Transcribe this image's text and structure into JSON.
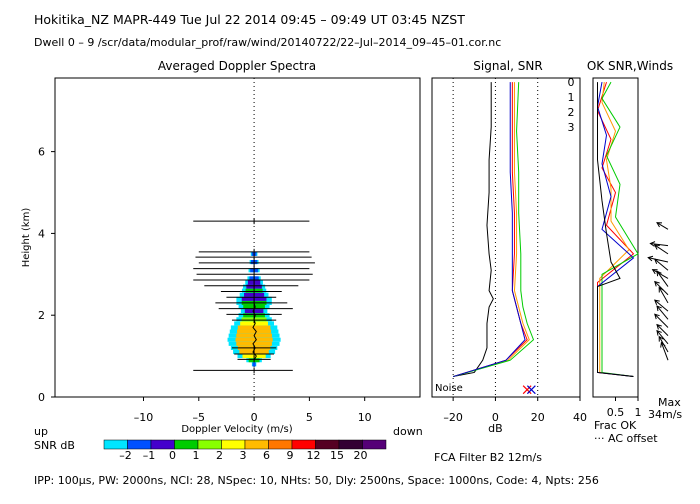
{
  "header": {
    "line1": "Hokitika_NZ  MAPR-449  Tue Jul 22 2014 09:45 – 09:49 UT 03:45 NZST",
    "line2": "Dwell  0 –  9   /scr/data/modular_prof/raw/wind/20140722/22–Jul–2014_09–45–01.cor.nc"
  },
  "footer": {
    "params": "IPP: 100µs,  PW: 2000ns,  NCI:  28,  NSpec: 10,  NHts: 50,  Dly: 2500ns,  Space: 1000ns,  Code: 4,  Npts: 256",
    "fca": "FCA Filter B2 12m/s",
    "frac_ok": "Frac OK",
    "ac_offset": "··· AC offset",
    "max_label": "Max",
    "max_value": "34m/s"
  },
  "colorbar": {
    "left_label": "up",
    "right_label": "down",
    "snr_label": "SNR dB",
    "levels": [
      "–2",
      "–1",
      "0",
      "1",
      "2",
      "3",
      "6",
      "9",
      "12",
      "15",
      "20"
    ],
    "colors": [
      "#00e5ff",
      "#0050ff",
      "#4400cc",
      "#00cc00",
      "#88ff00",
      "#ffff00",
      "#ffbb00",
      "#ff7700",
      "#ff0000",
      "#550022",
      "#330033",
      "#550077"
    ]
  },
  "legend": {
    "ok_title": "OK SNR,Winds",
    "entries": [
      {
        "label": "0",
        "color": "#ff0000"
      },
      {
        "label": "1",
        "color": "#ff9900"
      },
      {
        "label": "2",
        "color": "#00cc00"
      },
      {
        "label": "3",
        "color": "#0000cc"
      }
    ]
  },
  "chart_data": [
    {
      "type": "heatmap",
      "title": "Averaged Doppler Spectra",
      "xlabel": "Doppler Velocity (m/s)",
      "ylabel": "Height (km)",
      "xlim": [
        -18,
        15
      ],
      "ylim": [
        0,
        7.8
      ],
      "xticks": [
        "–10",
        "–5",
        "0",
        "5",
        "10"
      ],
      "xtick_values": [
        -10,
        -5,
        0,
        5,
        10
      ],
      "yticks": [
        "0",
        "2",
        "4",
        "6"
      ],
      "ytick_values": [
        0,
        2,
        4,
        6
      ],
      "spread_bars": [
        {
          "h": 4.3,
          "l": -5.5,
          "r": 5.0
        },
        {
          "h": 3.55,
          "l": -5.0,
          "r": 5.0
        },
        {
          "h": 3.42,
          "l": -5.3,
          "r": 5.2
        },
        {
          "h": 3.28,
          "l": -5.0,
          "r": 5.5
        },
        {
          "h": 3.14,
          "l": -5.5,
          "r": 5.0
        },
        {
          "h": 3.0,
          "l": -5.2,
          "r": 5.3
        },
        {
          "h": 2.86,
          "l": -5.5,
          "r": 5.0
        },
        {
          "h": 2.72,
          "l": -4.5,
          "r": 4.0
        },
        {
          "h": 2.58,
          "l": -3.0,
          "r": 2.5
        },
        {
          "h": 2.44,
          "l": -2.5,
          "r": 2.0
        },
        {
          "h": 2.3,
          "l": -3.5,
          "r": 3.0
        },
        {
          "h": 2.16,
          "l": -3.2,
          "r": 3.5
        },
        {
          "h": 2.02,
          "l": -2.5,
          "r": 2.5
        },
        {
          "h": 1.88,
          "l": -2.0,
          "r": 2.0
        },
        {
          "h": 1.2,
          "l": -2.0,
          "r": 2.0
        },
        {
          "h": 1.05,
          "l": -1.8,
          "r": 1.8
        },
        {
          "h": 0.92,
          "l": -1.5,
          "r": 1.5
        },
        {
          "h": 0.65,
          "l": -5.5,
          "r": 3.5
        }
      ],
      "spectra": [
        {
          "h": 0.8,
          "w": 0.2,
          "snr": -2
        },
        {
          "h": 0.9,
          "w": 0.7,
          "snr": 0
        },
        {
          "h": 1.0,
          "w": 1.5,
          "snr": 2
        },
        {
          "h": 1.1,
          "w": 1.9,
          "snr": 3
        },
        {
          "h": 1.2,
          "w": 2.1,
          "snr": 3
        },
        {
          "h": 1.3,
          "w": 2.3,
          "snr": 3
        },
        {
          "h": 1.4,
          "w": 2.4,
          "snr": 3
        },
        {
          "h": 1.5,
          "w": 2.3,
          "snr": 3
        },
        {
          "h": 1.6,
          "w": 2.2,
          "snr": 3
        },
        {
          "h": 1.7,
          "w": 2.1,
          "snr": 3
        },
        {
          "h": 1.8,
          "w": 1.8,
          "snr": 2
        },
        {
          "h": 1.9,
          "w": 1.6,
          "snr": 1
        },
        {
          "h": 2.0,
          "w": 1.4,
          "snr": 0
        },
        {
          "h": 2.1,
          "w": 1.2,
          "snr": -1
        },
        {
          "h": 2.2,
          "w": 1.4,
          "snr": 0
        },
        {
          "h": 2.3,
          "w": 1.6,
          "snr": 0
        },
        {
          "h": 2.4,
          "w": 1.6,
          "snr": -1
        },
        {
          "h": 2.5,
          "w": 1.3,
          "snr": -1
        },
        {
          "h": 2.6,
          "w": 1.1,
          "snr": 0
        },
        {
          "h": 2.7,
          "w": 1.0,
          "snr": -1
        },
        {
          "h": 2.8,
          "w": 0.8,
          "snr": -1
        },
        {
          "h": 2.9,
          "w": 0.6,
          "snr": -2
        },
        {
          "h": 3.1,
          "w": 0.5,
          "snr": -2
        },
        {
          "h": 3.3,
          "w": 0.4,
          "snr": -2
        },
        {
          "h": 3.5,
          "w": 0.3,
          "snr": -2
        }
      ],
      "mean_velocity": [
        {
          "h": 0.9,
          "v": 0.0
        },
        {
          "h": 1.0,
          "v": 0.2
        },
        {
          "h": 1.1,
          "v": -0.1
        },
        {
          "h": 1.2,
          "v": 0.1
        },
        {
          "h": 1.3,
          "v": -0.1
        },
        {
          "h": 1.4,
          "v": 0.2
        },
        {
          "h": 1.5,
          "v": 0.0
        },
        {
          "h": 1.6,
          "v": 0.2
        },
        {
          "h": 1.7,
          "v": -0.1
        },
        {
          "h": 1.8,
          "v": 0.1
        },
        {
          "h": 1.9,
          "v": 0.0
        },
        {
          "h": 2.0,
          "v": 0.1
        },
        {
          "h": 2.1,
          "v": -0.1
        },
        {
          "h": 2.2,
          "v": 0.1
        },
        {
          "h": 2.3,
          "v": 0.0
        },
        {
          "h": 2.4,
          "v": 0.0
        }
      ]
    },
    {
      "type": "line",
      "title": "Signal, SNR",
      "xlabel": "dB",
      "xlim": [
        -30,
        40
      ],
      "ylim": [
        0,
        7.8
      ],
      "xticks": [
        "–20",
        "0",
        "20",
        "40"
      ],
      "xtick_values": [
        -20,
        0,
        20,
        40
      ],
      "noise_label": "Noise",
      "dotted_x": [
        -20,
        20
      ],
      "series": [
        {
          "color": "#000000",
          "points": [
            [
              -20,
              0.5
            ],
            [
              -10,
              0.6
            ],
            [
              -6,
              0.9
            ],
            [
              -4,
              1.2
            ],
            [
              -4,
              1.8
            ],
            [
              -3,
              2.2
            ],
            [
              -1,
              2.4
            ],
            [
              -3,
              2.6
            ],
            [
              -2,
              3.1
            ],
            [
              -3,
              3.5
            ],
            [
              -4,
              4.2
            ],
            [
              -3,
              5.0
            ],
            [
              -3,
              5.8
            ],
            [
              -2,
              6.6
            ],
            [
              -2,
              7.7
            ]
          ]
        },
        {
          "color": "#ff0000",
          "points": [
            [
              -20,
              0.5
            ],
            [
              5,
              0.9
            ],
            [
              15,
              1.4
            ],
            [
              12,
              1.8
            ],
            [
              10,
              2.2
            ],
            [
              8,
              2.6
            ],
            [
              9,
              3.5
            ],
            [
              9,
              4.5
            ],
            [
              8,
              5.5
            ],
            [
              8,
              6.5
            ],
            [
              8,
              7.7
            ]
          ]
        },
        {
          "color": "#ff9900",
          "points": [
            [
              -20,
              0.5
            ],
            [
              6,
              0.9
            ],
            [
              16,
              1.4
            ],
            [
              13,
              1.8
            ],
            [
              11,
              2.2
            ],
            [
              9,
              2.6
            ],
            [
              10,
              3.5
            ],
            [
              10,
              4.5
            ],
            [
              9,
              5.5
            ],
            [
              9,
              6.5
            ],
            [
              9,
              7.7
            ]
          ]
        },
        {
          "color": "#00cc00",
          "points": [
            [
              -20,
              0.5
            ],
            [
              7,
              0.9
            ],
            [
              18,
              1.4
            ],
            [
              15,
              1.8
            ],
            [
              13,
              2.2
            ],
            [
              12,
              2.6
            ],
            [
              12,
              3.5
            ],
            [
              11,
              4.5
            ],
            [
              11,
              5.5
            ],
            [
              10,
              6.5
            ],
            [
              11,
              7.7
            ]
          ]
        },
        {
          "color": "#0000cc",
          "points": [
            [
              -20,
              0.5
            ],
            [
              5,
              0.9
            ],
            [
              14,
              1.4
            ],
            [
              12,
              1.8
            ],
            [
              10,
              2.2
            ],
            [
              8,
              2.6
            ],
            [
              8,
              3.5
            ],
            [
              8,
              4.5
            ],
            [
              7,
              5.5
            ],
            [
              7,
              6.5
            ],
            [
              7,
              7.7
            ]
          ]
        }
      ],
      "noise_marks": [
        15,
        17
      ]
    },
    {
      "type": "line",
      "title": "OK SNR,Winds",
      "xlabel": "Frac OK",
      "xlim": [
        0,
        1
      ],
      "ylim": [
        0,
        7.8
      ],
      "xticks": [
        "0.5",
        "1"
      ],
      "xtick_values": [
        0.5,
        1
      ],
      "series": [
        {
          "color": "#ff0000",
          "points": [
            [
              0.9,
              0.5
            ],
            [
              0.1,
              0.6
            ],
            [
              0.1,
              2.8
            ],
            [
              0.9,
              3.5
            ],
            [
              0.3,
              4.2
            ],
            [
              0.5,
              5.0
            ],
            [
              0.2,
              5.6
            ],
            [
              0.4,
              6.3
            ],
            [
              0.1,
              7.0
            ],
            [
              0.3,
              7.7
            ]
          ]
        },
        {
          "color": "#ff9900",
          "points": [
            [
              0.9,
              0.5
            ],
            [
              0.15,
              0.6
            ],
            [
              0.15,
              2.9
            ],
            [
              0.8,
              3.6
            ],
            [
              0.4,
              4.3
            ],
            [
              0.4,
              5.1
            ],
            [
              0.3,
              5.8
            ],
            [
              0.5,
              6.5
            ],
            [
              0.2,
              7.2
            ],
            [
              0.25,
              7.7
            ]
          ]
        },
        {
          "color": "#00cc00",
          "points": [
            [
              0.9,
              0.5
            ],
            [
              0.2,
              0.6
            ],
            [
              0.2,
              3.0
            ],
            [
              1.0,
              3.5
            ],
            [
              0.5,
              4.4
            ],
            [
              0.6,
              5.2
            ],
            [
              0.3,
              5.9
            ],
            [
              0.6,
              6.6
            ],
            [
              0.2,
              7.3
            ],
            [
              0.4,
              7.7
            ]
          ]
        },
        {
          "color": "#0000cc",
          "points": [
            [
              0.9,
              0.5
            ],
            [
              0.1,
              0.6
            ],
            [
              0.1,
              2.7
            ],
            [
              0.9,
              3.4
            ],
            [
              0.2,
              4.1
            ],
            [
              0.4,
              4.9
            ],
            [
              0.2,
              5.7
            ],
            [
              0.3,
              6.4
            ],
            [
              0.1,
              7.1
            ],
            [
              0.2,
              7.7
            ]
          ]
        },
        {
          "color": "#000000",
          "points": [
            [
              0.9,
              0.5
            ],
            [
              0.1,
              0.6
            ],
            [
              0.1,
              2.7
            ],
            [
              0.6,
              2.9
            ],
            [
              0.4,
              3.3
            ],
            [
              0.3,
              4.0
            ],
            [
              0.2,
              4.8
            ],
            [
              0.1,
              5.8
            ],
            [
              0.1,
              7.7
            ]
          ]
        }
      ],
      "winds": [
        {
          "h": 0.9,
          "u": -0.3,
          "v": 0.8
        },
        {
          "h": 1.1,
          "u": -0.4,
          "v": 0.7
        },
        {
          "h": 1.3,
          "u": -0.5,
          "v": 0.6
        },
        {
          "h": 1.5,
          "u": -0.5,
          "v": 0.5
        },
        {
          "h": 1.7,
          "u": -0.6,
          "v": 0.6
        },
        {
          "h": 1.9,
          "u": -0.5,
          "v": 0.6
        },
        {
          "h": 2.1,
          "u": -0.6,
          "v": 0.5
        },
        {
          "h": 2.3,
          "u": -0.4,
          "v": 0.7
        },
        {
          "h": 2.5,
          "u": -0.6,
          "v": 0.6
        },
        {
          "h": 2.7,
          "u": -0.5,
          "v": 0.7
        },
        {
          "h": 2.9,
          "u": -0.7,
          "v": 0.4
        },
        {
          "h": 3.1,
          "u": -0.6,
          "v": 0.5
        },
        {
          "h": 3.3,
          "u": -0.9,
          "v": 0.2
        },
        {
          "h": 3.5,
          "u": -0.6,
          "v": 0.4
        },
        {
          "h": 3.7,
          "u": -0.8,
          "v": 0.1
        },
        {
          "h": 4.1,
          "u": -0.5,
          "v": 0.3
        }
      ]
    }
  ]
}
